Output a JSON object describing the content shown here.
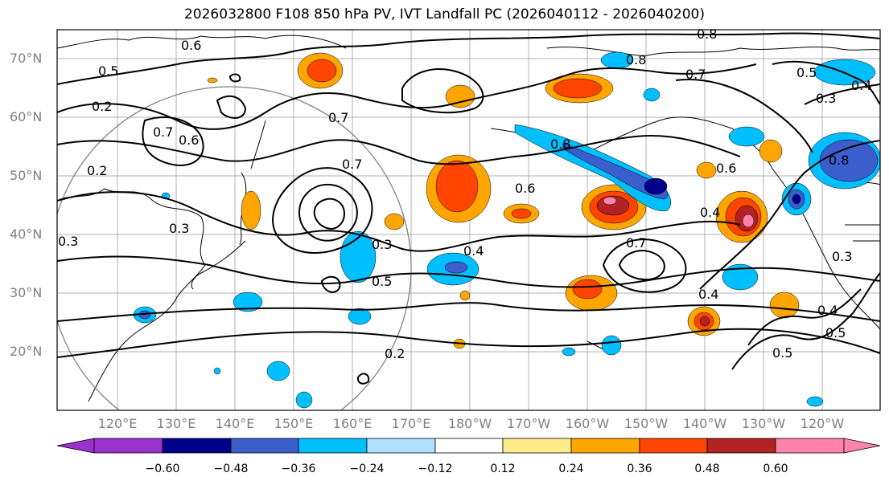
{
  "title": "2026032800 F108 850 hPa PV, IVT Landfall PC (2026040112 - 2026040200)",
  "map": {
    "lat_labels": [
      "70°N",
      "60°N",
      "50°N",
      "40°N",
      "30°N",
      "20°N"
    ],
    "lon_labels": [
      "120°E",
      "130°E",
      "140°E",
      "150°E",
      "160°E",
      "170°E",
      "180°W",
      "170°W",
      "160°W",
      "150°W",
      "140°W",
      "130°W",
      "120°W"
    ],
    "contour_labels": [
      "0.8",
      "0.5",
      "0.6",
      "0.8",
      "0.7",
      "0.5",
      "0.4",
      "0.3",
      "0.2",
      "0.6",
      "0.7",
      "0.2",
      "0.3",
      "0.8",
      "0.7",
      "0.6",
      "0.4",
      "0.3",
      "0.5",
      "0.2",
      "0.4",
      "0.7",
      "0.6",
      "0.4",
      "0.8",
      "0.5",
      "0.3",
      "0.4",
      "0.5",
      "0.7",
      "0.3"
    ]
  },
  "colorbar": {
    "ticks": [
      "−0.60",
      "−0.48",
      "−0.36",
      "−0.24",
      "−0.12",
      "0.12",
      "0.24",
      "0.36",
      "0.48",
      "0.60"
    ],
    "colors": [
      "#9932CC",
      "#00008B",
      "#3A5FCD",
      "#00BFFF",
      "#B0E2FF",
      "#FFFFFF",
      "#FFEC8B",
      "#FFA500",
      "#FF4500",
      "#B22222",
      "#FF82AB"
    ]
  }
}
